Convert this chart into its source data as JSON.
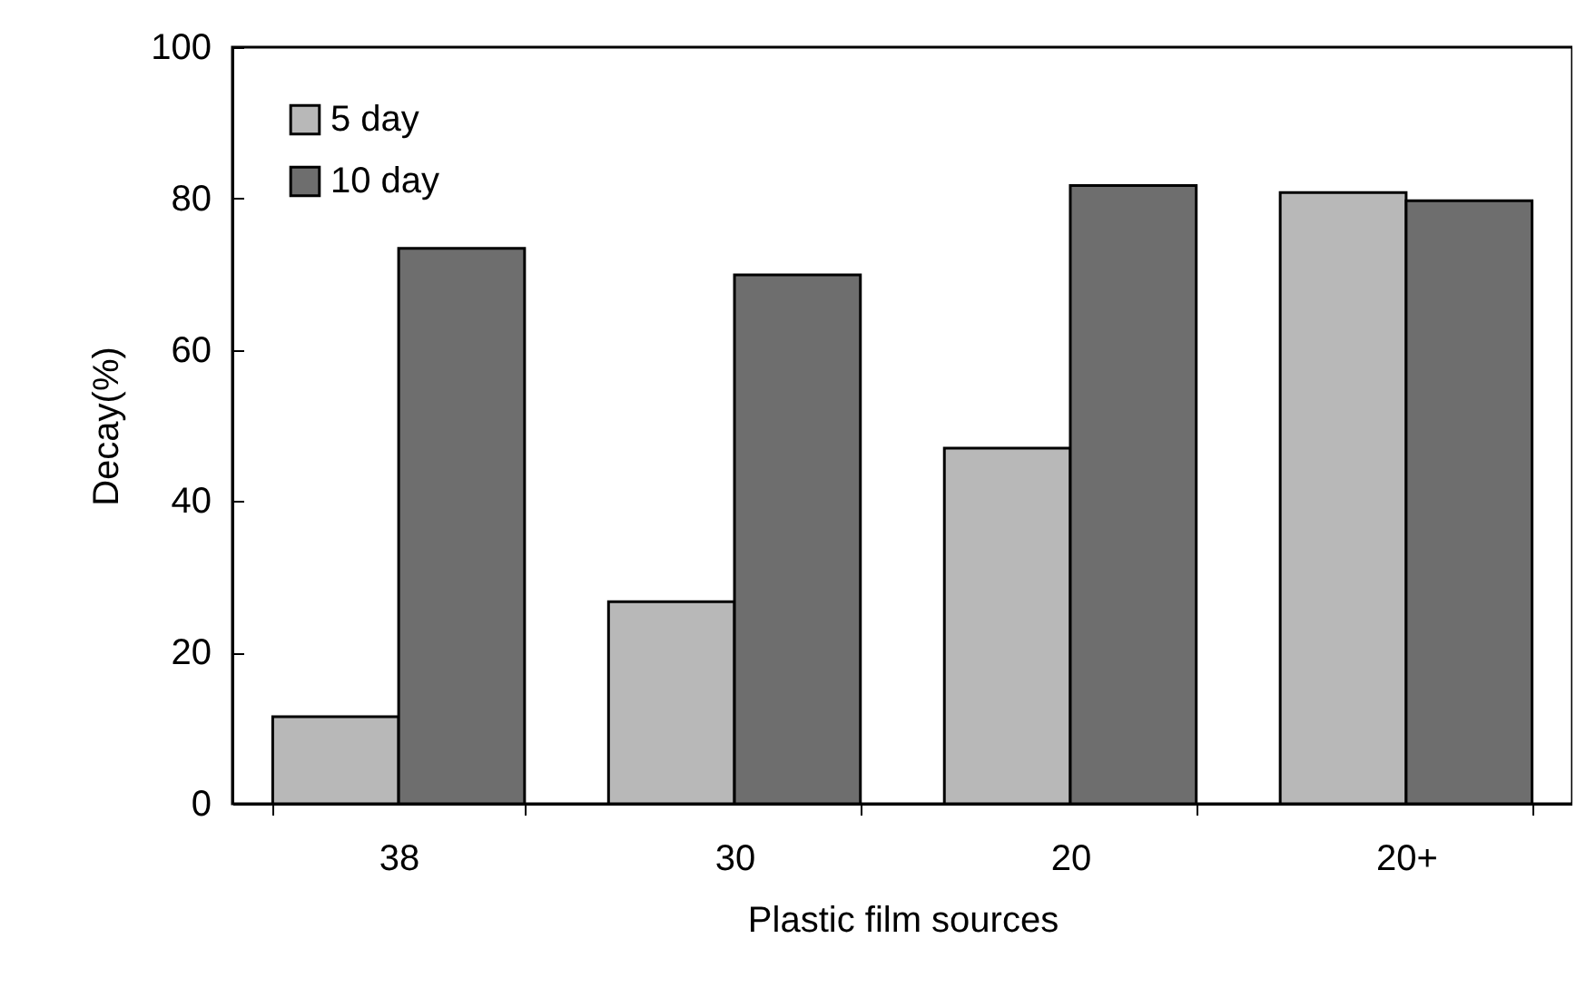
{
  "chart_data": {
    "type": "bar",
    "xlabel": "Plastic film sources",
    "ylabel": "Decay(%)",
    "categories": [
      "38",
      "30",
      "20",
      "20+"
    ],
    "series": [
      {
        "name": "5 day",
        "color": "#b8b8b8",
        "values": [
          11.5,
          26.7,
          47,
          80.8
        ]
      },
      {
        "name": "10 day",
        "color": "#6e6e6e",
        "values": [
          73.4,
          69.9,
          81.7,
          79.7
        ]
      }
    ],
    "ylim": [
      0,
      100
    ],
    "yticks": [
      0,
      20,
      40,
      60,
      80,
      100
    ],
    "grid": false,
    "legend": "top left"
  }
}
